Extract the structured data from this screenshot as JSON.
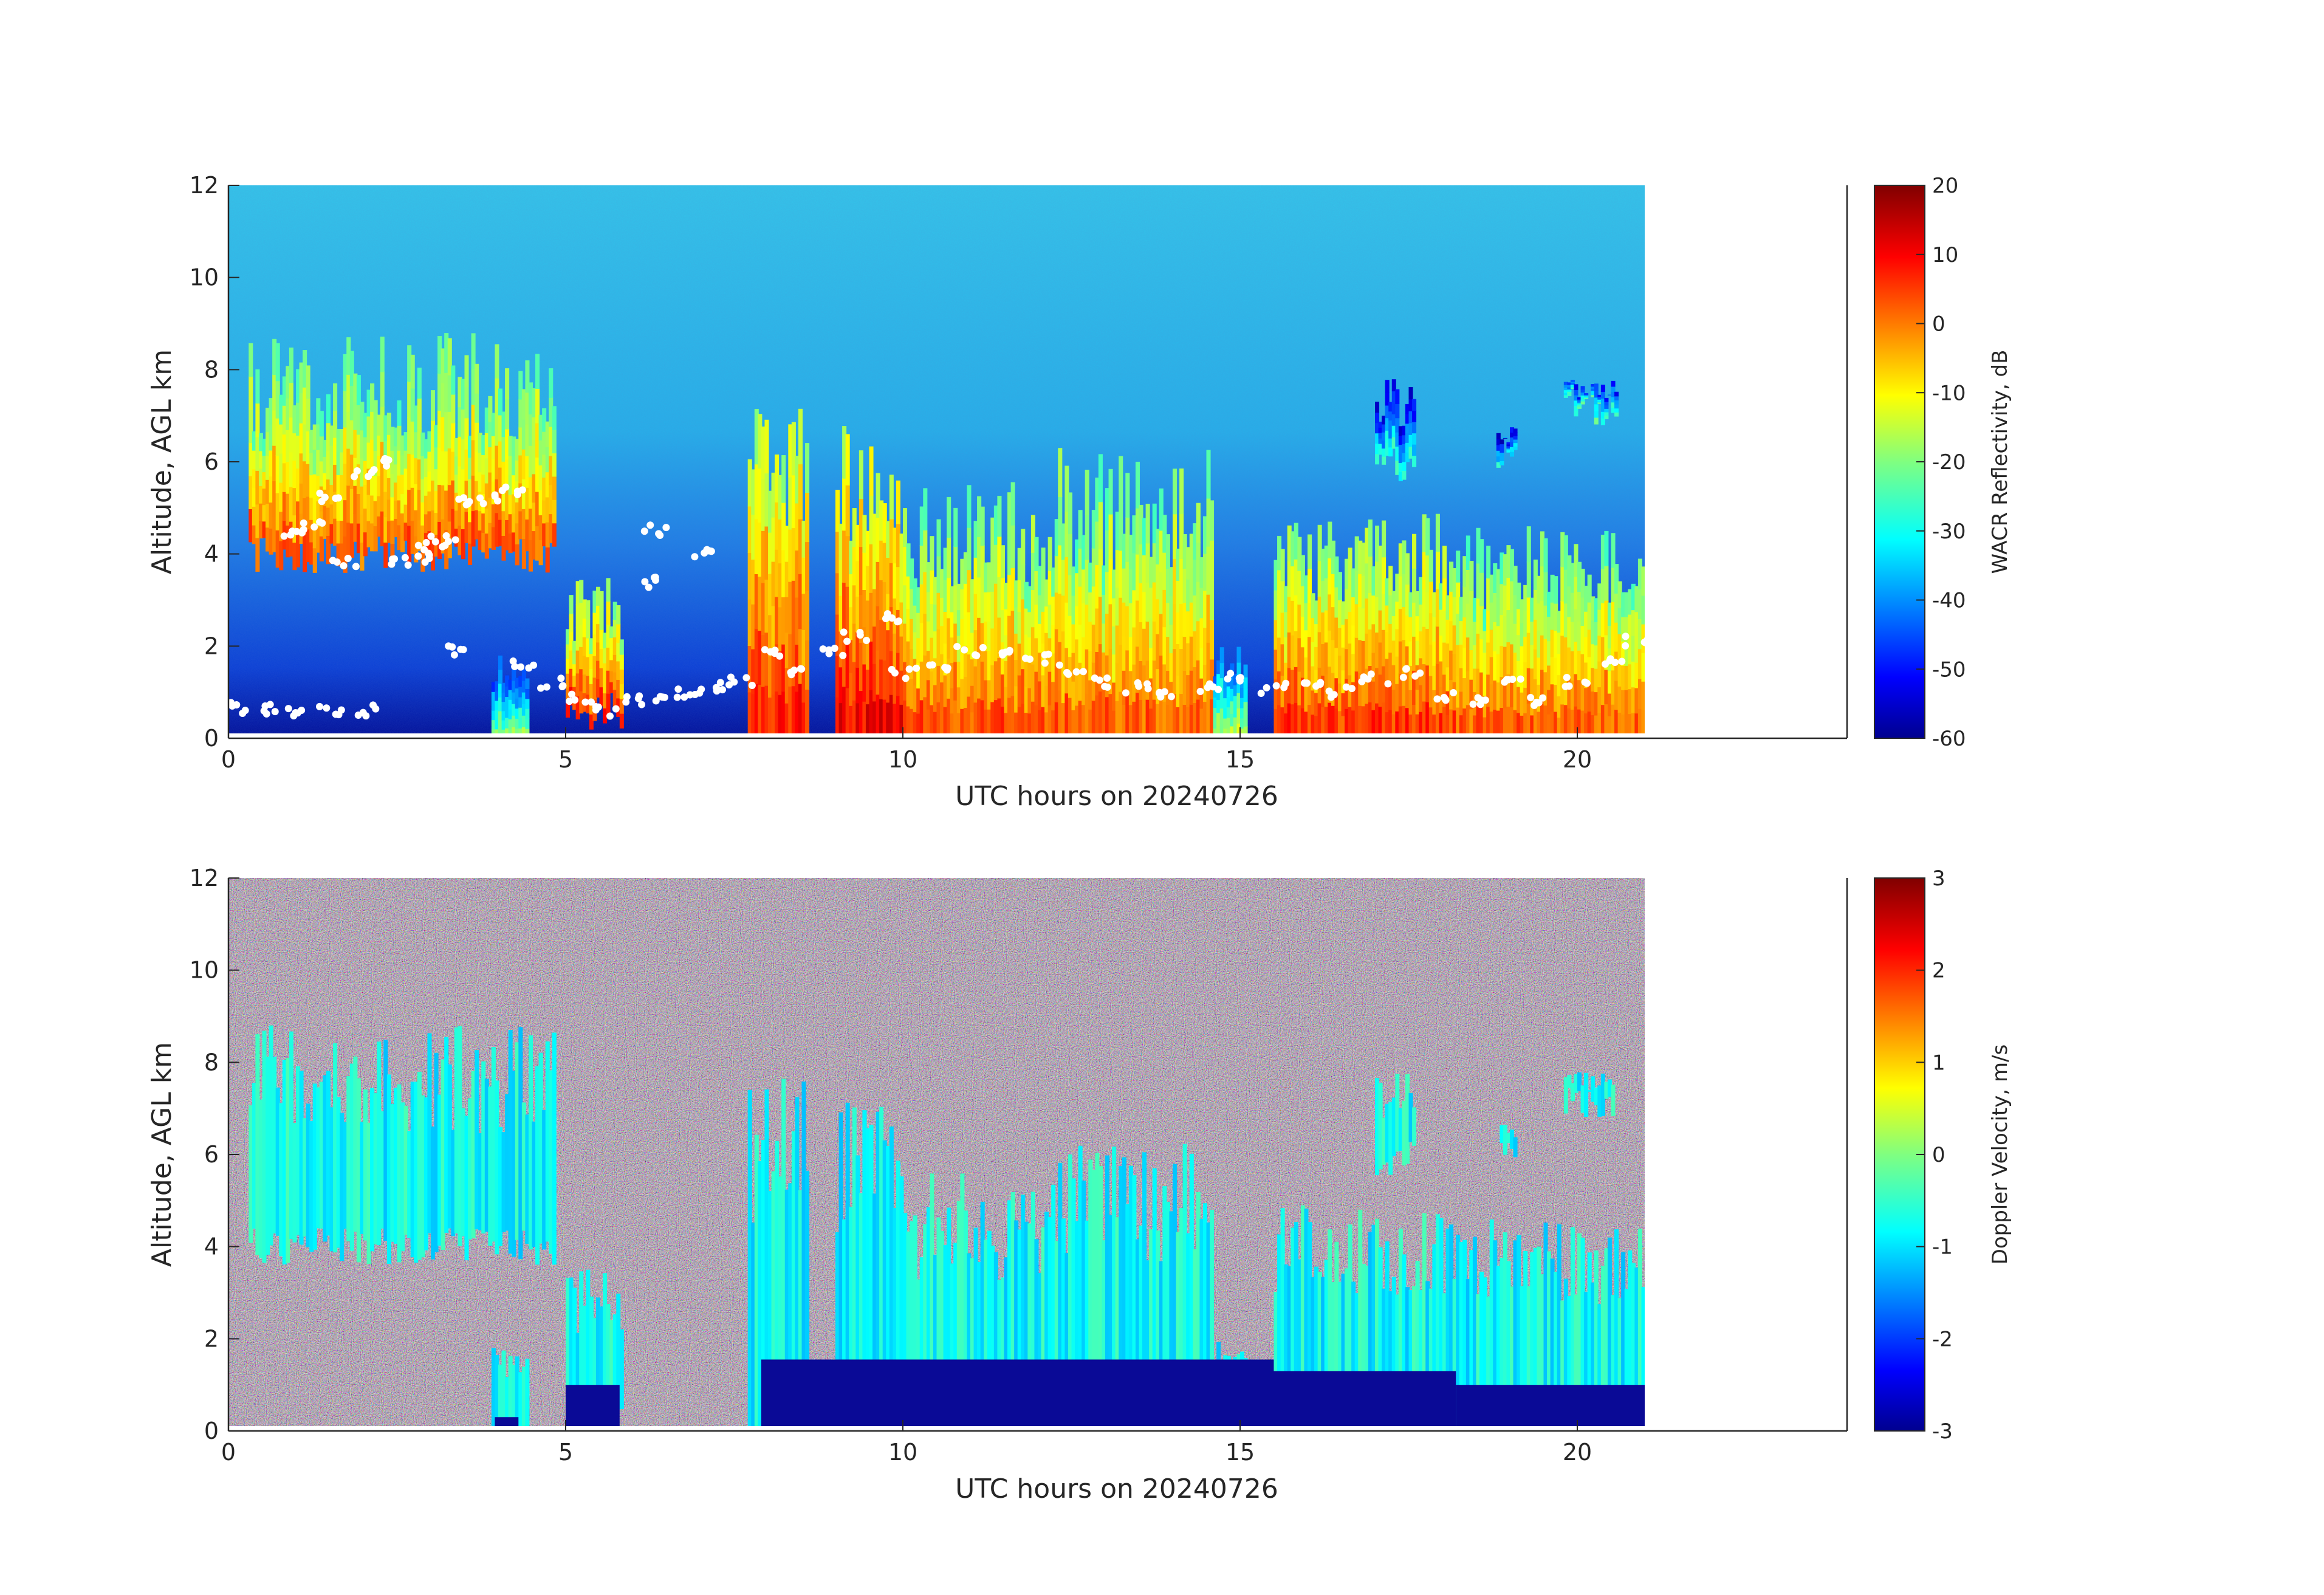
{
  "chart_data": [
    {
      "type": "heatmap",
      "title": "",
      "xlabel": "UTC hours on 20240726",
      "ylabel": "Altitude, AGL km",
      "xlim": [
        0,
        24
      ],
      "ylim": [
        0,
        12
      ],
      "data_extent_x": [
        0,
        21
      ],
      "x_ticks": [
        "0",
        "5",
        "10",
        "15",
        "20"
      ],
      "y_ticks": [
        "0",
        "2",
        "4",
        "6",
        "8",
        "10",
        "12"
      ],
      "colorbar": {
        "label": "WACR Reflectivity, dB",
        "range": [
          -60,
          20
        ],
        "ticks": [
          "20",
          "10",
          "0",
          "-10",
          "-20",
          "-30",
          "-40",
          "-50",
          "-60"
        ],
        "colormap": "jet"
      },
      "cloud_base_markers": {
        "color": "#ffffff",
        "points": [
          [
            0.1,
            0.65
          ],
          [
            0.5,
            0.62
          ],
          [
            1.0,
            0.6
          ],
          [
            1.5,
            0.62
          ],
          [
            2.0,
            0.6
          ],
          [
            0.9,
            4.5
          ],
          [
            1.2,
            4.6
          ],
          [
            1.5,
            5.2
          ],
          [
            2.0,
            5.8
          ],
          [
            2.3,
            6.0
          ],
          [
            1.7,
            3.8
          ],
          [
            2.5,
            3.8
          ],
          [
            2.8,
            3.9
          ],
          [
            3.0,
            4.2
          ],
          [
            3.2,
            4.3
          ],
          [
            3.5,
            5.1
          ],
          [
            3.8,
            5.2
          ],
          [
            4.2,
            5.4
          ],
          [
            3.3,
            1.9
          ],
          [
            4.4,
            1.6
          ],
          [
            4.8,
            1.2
          ],
          [
            5.2,
            0.9
          ],
          [
            5.6,
            0.6
          ],
          [
            6.0,
            0.8
          ],
          [
            6.5,
            0.9
          ],
          [
            6.8,
            1.0
          ],
          [
            7.2,
            1.1
          ],
          [
            7.6,
            1.2
          ],
          [
            6.3,
            4.5
          ],
          [
            6.2,
            3.4
          ],
          [
            7.0,
            4.0
          ],
          [
            8.0,
            1.9
          ],
          [
            8.5,
            1.5
          ],
          [
            9.0,
            1.9
          ],
          [
            9.3,
            2.2
          ],
          [
            9.8,
            2.6
          ],
          [
            10.0,
            1.4
          ],
          [
            10.5,
            1.5
          ],
          [
            11.0,
            1.9
          ],
          [
            11.5,
            1.9
          ],
          [
            12.0,
            1.7
          ],
          [
            12.5,
            1.5
          ],
          [
            13.0,
            1.2
          ],
          [
            13.5,
            1.1
          ],
          [
            14.0,
            0.9
          ],
          [
            14.5,
            1.1
          ],
          [
            15.0,
            1.3
          ],
          [
            15.5,
            1.1
          ],
          [
            16.0,
            1.2
          ],
          [
            16.5,
            1.0
          ],
          [
            17.0,
            1.3
          ],
          [
            17.5,
            1.4
          ],
          [
            18.0,
            0.9
          ],
          [
            18.5,
            0.8
          ],
          [
            19.0,
            1.2
          ],
          [
            19.5,
            0.8
          ],
          [
            20.0,
            1.2
          ],
          [
            20.5,
            1.6
          ],
          [
            20.9,
            2.1
          ]
        ]
      }
    },
    {
      "type": "heatmap",
      "title": "",
      "xlabel": "UTC hours on 20240726",
      "ylabel": "Altitude, AGL km",
      "xlim": [
        0,
        24
      ],
      "ylim": [
        0,
        12
      ],
      "data_extent_x": [
        0,
        21
      ],
      "x_ticks": [
        "0",
        "5",
        "10",
        "15",
        "20"
      ],
      "y_ticks": [
        "0",
        "2",
        "4",
        "6",
        "8",
        "10",
        "12"
      ],
      "colorbar": {
        "label": "Doppler Velocity, m/s",
        "range": [
          -3,
          3
        ],
        "ticks": [
          "3",
          "2",
          "1",
          "0",
          "-1",
          "-2",
          "-3"
        ],
        "colormap": "jet"
      }
    }
  ]
}
